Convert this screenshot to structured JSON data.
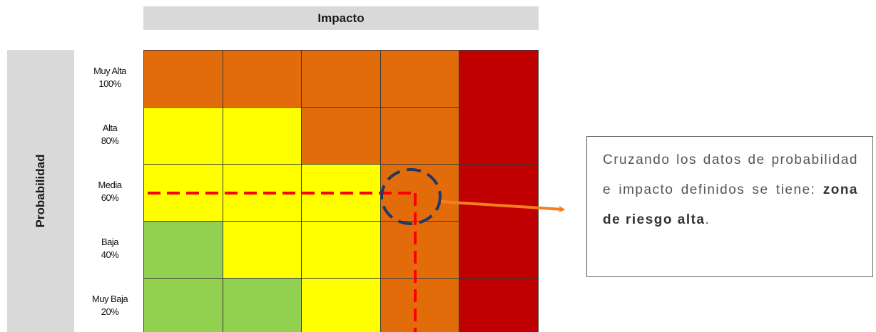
{
  "impact_header": "Impacto",
  "probability_label": "Probabilidad",
  "rows": [
    {
      "name": "Muy Alta",
      "pct": "100%",
      "colors": [
        "#e36c0a",
        "#e36c0a",
        "#e36c0a",
        "#e36c0a",
        "#c00000"
      ]
    },
    {
      "name": "Alta",
      "pct": "80%",
      "colors": [
        "#ffff00",
        "#ffff00",
        "#e36c0a",
        "#e36c0a",
        "#c00000"
      ]
    },
    {
      "name": "Media",
      "pct": "60%",
      "colors": [
        "#ffff00",
        "#ffff00",
        "#ffff00",
        "#e36c0a",
        "#c00000"
      ]
    },
    {
      "name": "Baja",
      "pct": "40%",
      "colors": [
        "#92d050",
        "#ffff00",
        "#ffff00",
        "#e36c0a",
        "#c00000"
      ]
    },
    {
      "name": "Muy Baja",
      "pct": "20%",
      "colors": [
        "#92d050",
        "#92d050",
        "#ffff00",
        "#e36c0a",
        "#c00000"
      ]
    }
  ],
  "callout": {
    "text_before": "Cruzando los datos de probabilidad e impacto definidos se tiene: ",
    "text_bold": "zona de riesgo alta",
    "text_after": "."
  },
  "colors": {
    "dashed_line": "#ff0000",
    "circle": "#1f3864",
    "arrow": "#f4801f"
  }
}
